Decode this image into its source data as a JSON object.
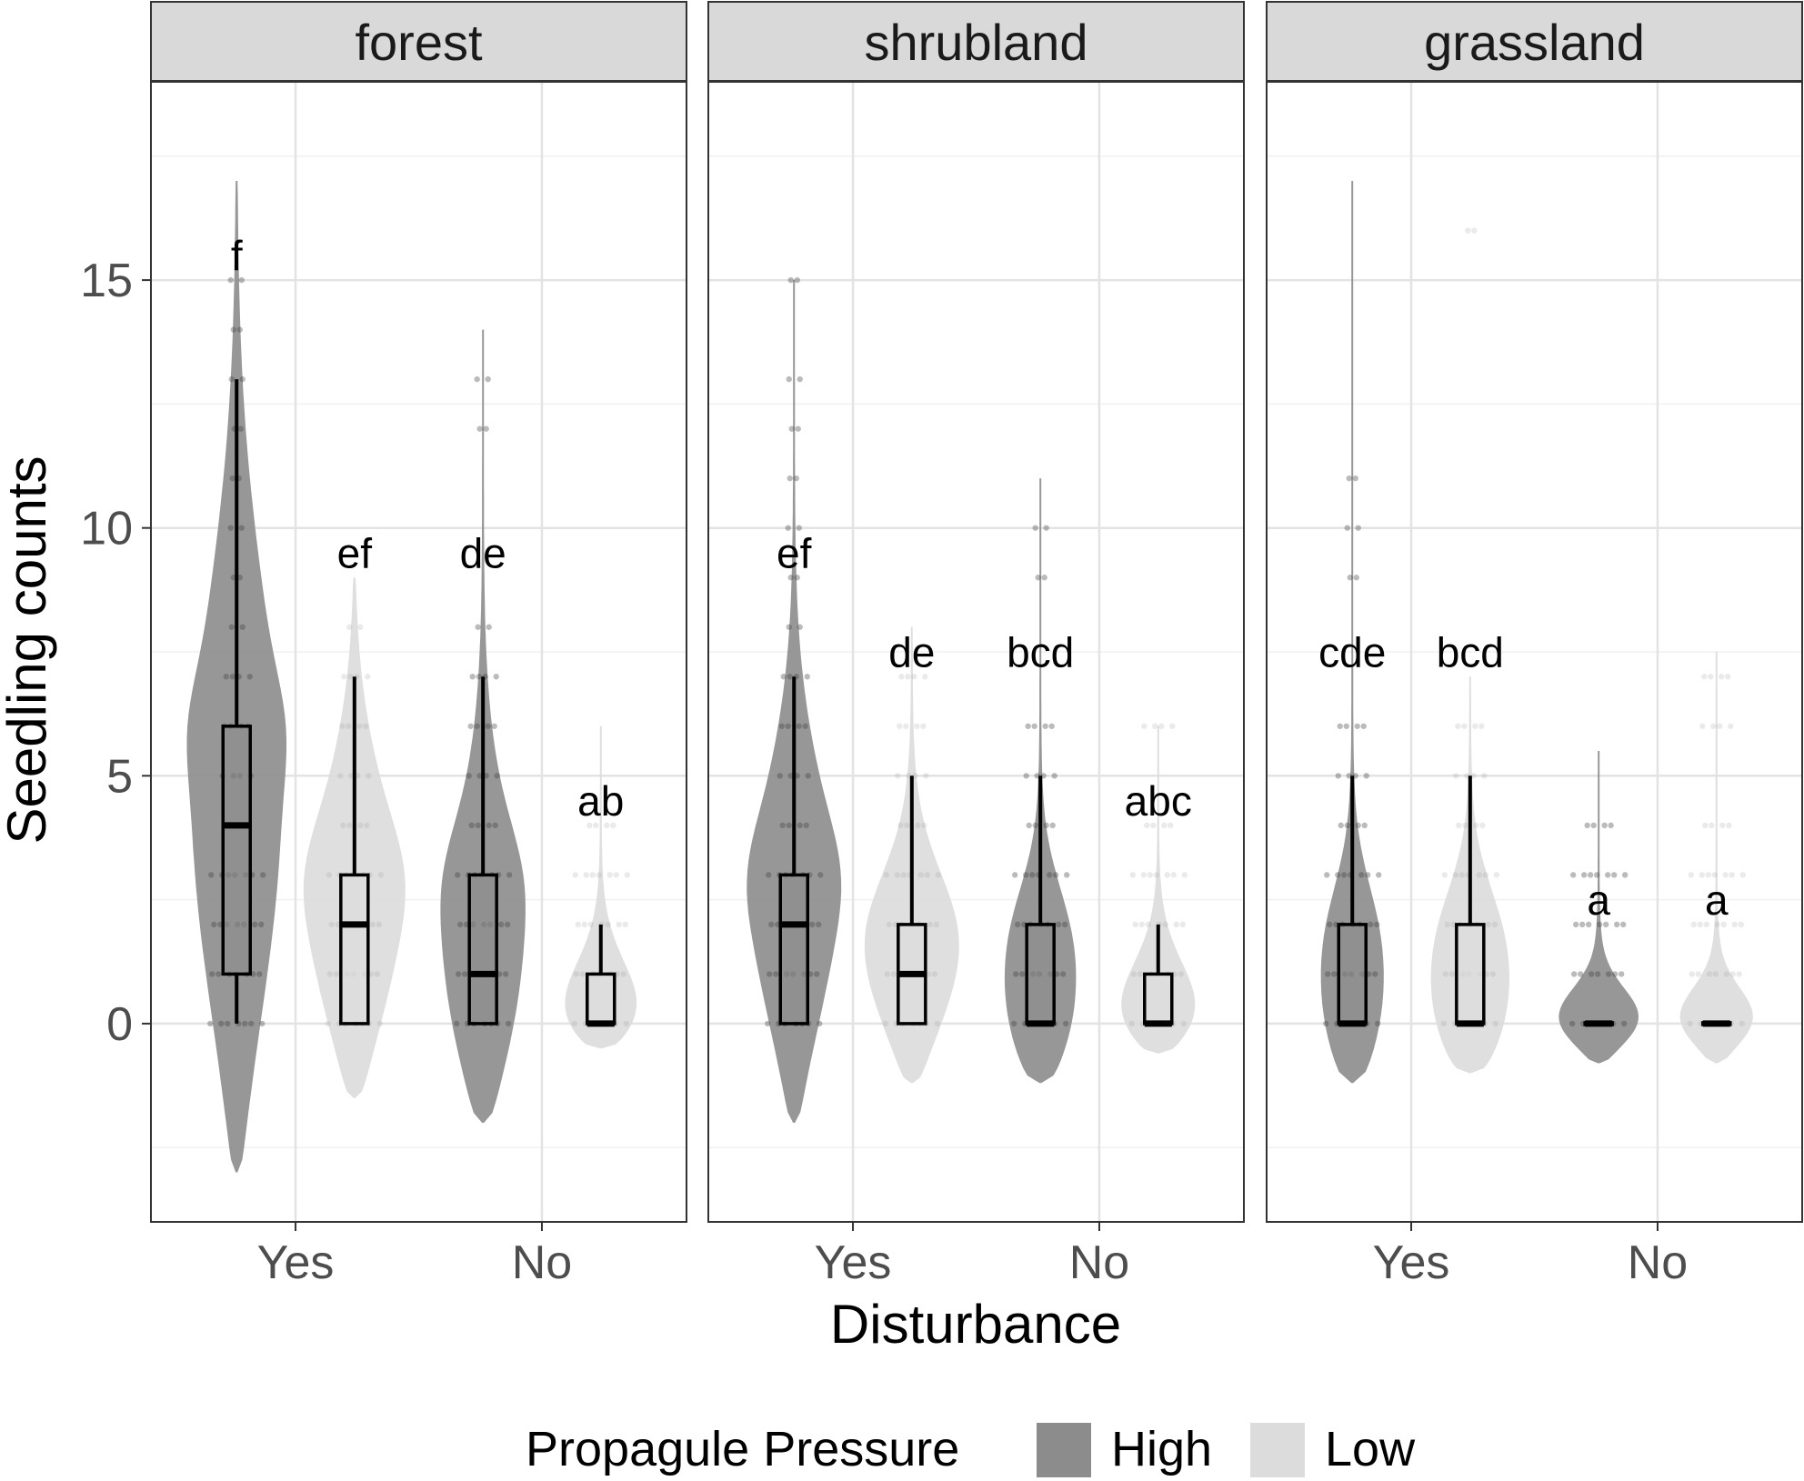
{
  "chart_data": {
    "type": "violin-box",
    "xlabel": "Disturbance",
    "ylabel": "Seedling counts",
    "ylim": [
      -4,
      19
    ],
    "yticks": [
      0,
      5,
      10,
      15
    ],
    "y_tick_labels": [
      "0",
      "5",
      "10",
      "15"
    ],
    "categories": [
      "Yes",
      "No"
    ],
    "grid": true,
    "legend": {
      "title": "Propagule Pressure",
      "position": "bottom",
      "items": [
        {
          "name": "High",
          "color": "#8c8c8c"
        },
        {
          "name": "Low",
          "color": "#dcdcdc"
        }
      ]
    },
    "facets": [
      {
        "name": "forest",
        "groups": [
          {
            "disturbance": "Yes",
            "pressure": "High",
            "letter": "f",
            "box": {
              "lower": 1,
              "median": 4,
              "upper": 6,
              "whisker_low": 0,
              "whisker_high": 13
            },
            "violin_range": [
              -3,
              17
            ],
            "points": [
              0,
              1,
              2,
              3,
              4,
              5,
              6,
              7,
              8,
              9,
              10,
              11,
              12,
              13,
              14,
              15
            ]
          },
          {
            "disturbance": "Yes",
            "pressure": "Low",
            "letter": "ef",
            "box": {
              "lower": 0,
              "median": 2,
              "upper": 3,
              "whisker_low": 0,
              "whisker_high": 7
            },
            "violin_range": [
              -1.5,
              9
            ],
            "points": [
              0,
              1,
              2,
              3,
              4,
              5,
              6,
              7,
              8
            ]
          },
          {
            "disturbance": "No",
            "pressure": "High",
            "letter": "de",
            "box": {
              "lower": 0,
              "median": 1,
              "upper": 3,
              "whisker_low": 0,
              "whisker_high": 7
            },
            "violin_range": [
              -2,
              14
            ],
            "points": [
              0,
              1,
              2,
              3,
              4,
              5,
              6,
              7,
              8,
              12,
              13
            ]
          },
          {
            "disturbance": "No",
            "pressure": "Low",
            "letter": "ab",
            "box": {
              "lower": 0,
              "median": 0,
              "upper": 1,
              "whisker_low": 0,
              "whisker_high": 2
            },
            "violin_range": [
              -0.5,
              6
            ],
            "points": [
              0,
              1,
              2,
              3,
              4
            ]
          }
        ]
      },
      {
        "name": "shrubland",
        "groups": [
          {
            "disturbance": "Yes",
            "pressure": "High",
            "letter": "ef",
            "box": {
              "lower": 0,
              "median": 2,
              "upper": 3,
              "whisker_low": 0,
              "whisker_high": 7
            },
            "violin_range": [
              -2,
              15
            ],
            "points": [
              0,
              1,
              2,
              3,
              4,
              5,
              6,
              7,
              8,
              9,
              10,
              11,
              12,
              13,
              15
            ]
          },
          {
            "disturbance": "Yes",
            "pressure": "Low",
            "letter": "de",
            "box": {
              "lower": 0,
              "median": 1,
              "upper": 2,
              "whisker_low": 0,
              "whisker_high": 5
            },
            "violin_range": [
              -1.2,
              8
            ],
            "points": [
              0,
              1,
              2,
              3,
              4,
              5,
              6,
              7
            ]
          },
          {
            "disturbance": "No",
            "pressure": "High",
            "letter": "bcd",
            "box": {
              "lower": 0,
              "median": 0,
              "upper": 2,
              "whisker_low": 0,
              "whisker_high": 5
            },
            "violin_range": [
              -1.2,
              11
            ],
            "points": [
              0,
              1,
              2,
              3,
              4,
              5,
              6,
              9,
              10
            ]
          },
          {
            "disturbance": "No",
            "pressure": "Low",
            "letter": "abc",
            "box": {
              "lower": 0,
              "median": 0,
              "upper": 1,
              "whisker_low": 0,
              "whisker_high": 2
            },
            "violin_range": [
              -0.6,
              6
            ],
            "points": [
              0,
              1,
              2,
              3,
              4,
              6
            ]
          }
        ]
      },
      {
        "name": "grassland",
        "groups": [
          {
            "disturbance": "Yes",
            "pressure": "High",
            "letter": "cde",
            "box": {
              "lower": 0,
              "median": 0,
              "upper": 2,
              "whisker_low": 0,
              "whisker_high": 5
            },
            "violin_range": [
              -1.2,
              17
            ],
            "points": [
              0,
              1,
              2,
              3,
              4,
              5,
              6,
              9,
              10,
              11
            ]
          },
          {
            "disturbance": "Yes",
            "pressure": "Low",
            "letter": "bcd",
            "box": {
              "lower": 0,
              "median": 0,
              "upper": 2,
              "whisker_low": 0,
              "whisker_high": 5
            },
            "violin_range": [
              -1,
              7
            ],
            "points": [
              0,
              1,
              2,
              3,
              4,
              5,
              6,
              16
            ]
          },
          {
            "disturbance": "No",
            "pressure": "High",
            "letter": "a",
            "box": {
              "lower": 0,
              "median": 0,
              "upper": 0,
              "whisker_low": 0,
              "whisker_high": 0
            },
            "violin_range": [
              -0.8,
              5.5
            ],
            "points": [
              0,
              1,
              2,
              3,
              4
            ]
          },
          {
            "disturbance": "No",
            "pressure": "Low",
            "letter": "a",
            "box": {
              "lower": 0,
              "median": 0,
              "upper": 0,
              "whisker_low": 0,
              "whisker_high": 0
            },
            "violin_range": [
              -0.8,
              7.5
            ],
            "points": [
              0,
              1,
              2,
              3,
              4,
              6,
              7
            ]
          }
        ]
      }
    ]
  }
}
